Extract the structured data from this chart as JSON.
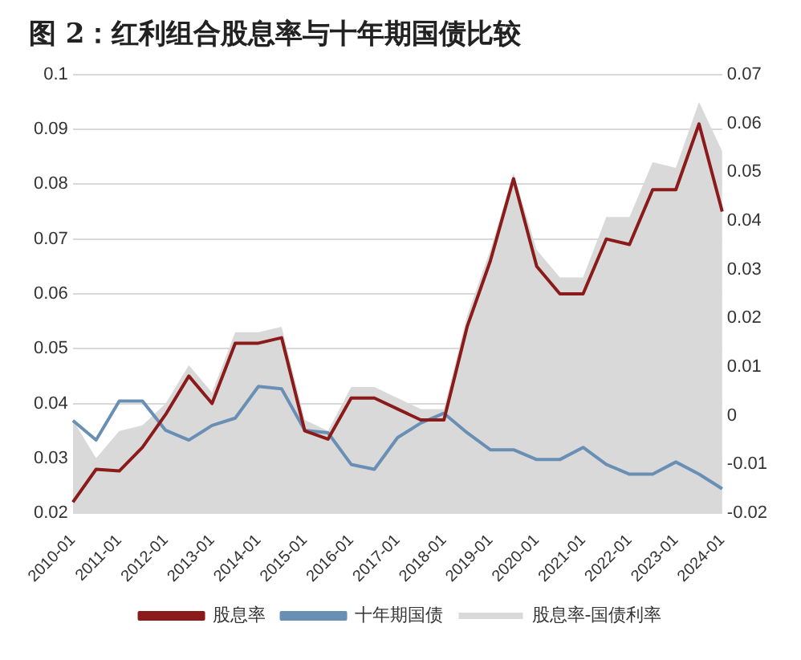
{
  "chart_data": {
    "type": "line",
    "title": "图 2：红利组合股息率与十年期国债比较",
    "categories": [
      "2010-01",
      null,
      "2011-01",
      null,
      "2012-01",
      null,
      "2013-01",
      null,
      "2014-01",
      null,
      "2015-01",
      null,
      "2016-01",
      null,
      "2017-01",
      null,
      "2018-01",
      null,
      "2019-01",
      null,
      "2020-01",
      null,
      "2021-01",
      null,
      "2022-01",
      null,
      "2023-01",
      null,
      "2024-01"
    ],
    "series": [
      {
        "name": "股息率-国债利率",
        "type": "area",
        "color": "#d9d9d9",
        "values": [
          0.037,
          0.03,
          0.035,
          0.036,
          0.04,
          0.047,
          0.042,
          0.053,
          0.053,
          0.054,
          0.037,
          0.035,
          0.043,
          0.043,
          0.041,
          0.039,
          0.039,
          0.056,
          0.068,
          0.082,
          0.068,
          0.063,
          0.063,
          0.074,
          0.074,
          0.084,
          0.083,
          0.095,
          0.086
        ]
      },
      {
        "name": "股息率",
        "color": "#8b1a1a",
        "values": [
          0.022,
          0.028,
          0.0277,
          0.032,
          0.038,
          0.045,
          0.04,
          0.051,
          0.051,
          0.052,
          0.035,
          0.0335,
          0.041,
          0.041,
          0.039,
          0.037,
          0.037,
          0.054,
          0.066,
          0.081,
          0.065,
          0.06,
          0.06,
          0.07,
          0.069,
          0.079,
          0.079,
          0.091,
          0.075
        ]
      },
      {
        "name": "十年期国债",
        "color": "#6a8fb5",
        "axis": "y2",
        "values": [
          -0.001,
          -0.005,
          0.003,
          0.003,
          -0.003,
          -0.005,
          -0.002,
          -0.0005,
          0.006,
          0.0055,
          -0.003,
          -0.0035,
          -0.01,
          -0.011,
          -0.0045,
          -0.0015,
          0.0005,
          -0.0035,
          -0.007,
          -0.007,
          -0.009,
          -0.009,
          -0.0065,
          -0.01,
          -0.012,
          -0.012,
          -0.0095,
          -0.012,
          -0.015
        ]
      }
    ],
    "ylim": [
      0.02,
      0.1
    ],
    "yticks": [
      0.02,
      0.03,
      0.04,
      0.05,
      0.06,
      0.07,
      0.08,
      0.09,
      0.1
    ],
    "y2lim": [
      -0.02,
      0.07
    ],
    "y2ticks": [
      -0.02,
      -0.01,
      0,
      0.01,
      0.02,
      0.03,
      0.04,
      0.05,
      0.06,
      0.07
    ],
    "grid": "y",
    "legend": "bottom",
    "marker": "none",
    "line_style": "solid"
  }
}
